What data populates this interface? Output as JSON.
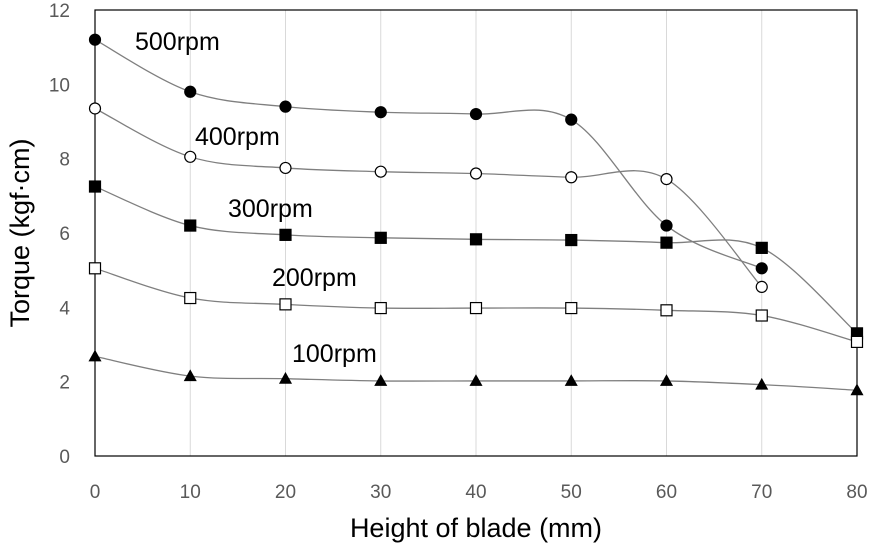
{
  "chart_data": {
    "type": "scatter",
    "xlabel": "Height of blade (mm)",
    "ylabel": "Torque (kgf·cm)",
    "xlim": [
      0,
      80
    ],
    "ylim": [
      0,
      12
    ],
    "xticks": [
      0,
      10,
      20,
      30,
      40,
      50,
      60,
      70,
      80
    ],
    "yticks": [
      0,
      2,
      4,
      6,
      8,
      10,
      12
    ],
    "grid": "vertical",
    "line_style": "smoothed",
    "line_color": "#7f7f7f",
    "series": [
      {
        "name": "500rpm",
        "marker": "filled-circle",
        "x": [
          0,
          10,
          20,
          30,
          40,
          50,
          60,
          70
        ],
        "y": [
          11.2,
          9.8,
          9.4,
          9.25,
          9.2,
          9.05,
          6.2,
          5.05
        ]
      },
      {
        "name": "400rpm",
        "marker": "open-circle",
        "x": [
          0,
          10,
          20,
          30,
          40,
          50,
          60,
          70
        ],
        "y": [
          9.35,
          8.05,
          7.75,
          7.65,
          7.6,
          7.5,
          7.45,
          4.55
        ]
      },
      {
        "name": "300rpm",
        "marker": "filled-square",
        "x": [
          0,
          10,
          20,
          30,
          40,
          50,
          60,
          70,
          80
        ],
        "y": [
          7.25,
          6.2,
          5.95,
          5.87,
          5.83,
          5.81,
          5.74,
          5.6,
          3.3
        ]
      },
      {
        "name": "200rpm",
        "marker": "open-square",
        "x": [
          0,
          10,
          20,
          30,
          40,
          50,
          60,
          70,
          80
        ],
        "y": [
          5.05,
          4.25,
          4.08,
          3.98,
          3.98,
          3.98,
          3.92,
          3.78,
          3.07
        ]
      },
      {
        "name": "100rpm",
        "marker": "filled-triangle",
        "x": [
          0,
          10,
          20,
          30,
          40,
          50,
          60,
          70,
          80
        ],
        "y": [
          2.68,
          2.15,
          2.08,
          2.02,
          2.02,
          2.02,
          2.02,
          1.92,
          1.77
        ]
      }
    ]
  }
}
